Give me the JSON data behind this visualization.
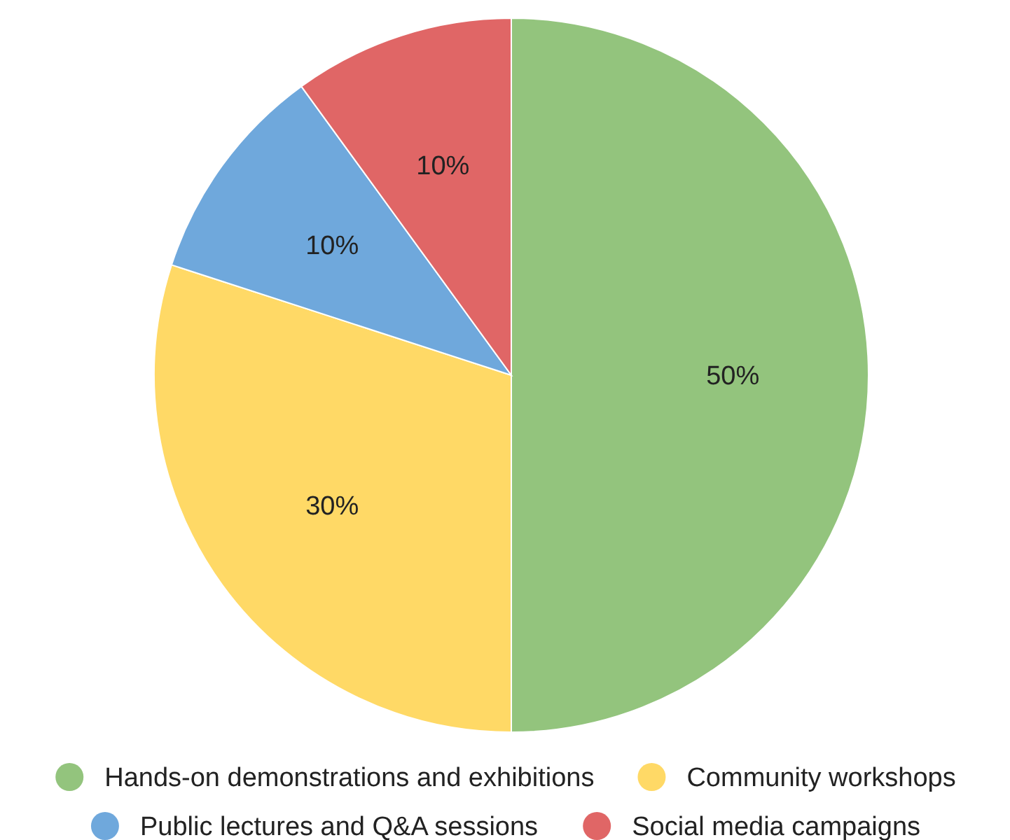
{
  "chart_data": {
    "type": "pie",
    "categories": [
      "Hands-on demonstrations and exhibitions",
      "Community workshops",
      "Public lectures and Q&A sessions",
      "Social media campaigns"
    ],
    "values": [
      50,
      30,
      10,
      10
    ],
    "colors": [
      "#93c47d",
      "#ffd966",
      "#6fa8dc",
      "#e06666"
    ],
    "value_labels": [
      "50%",
      "30%",
      "10%",
      "10%"
    ],
    "legend": "bottom"
  }
}
